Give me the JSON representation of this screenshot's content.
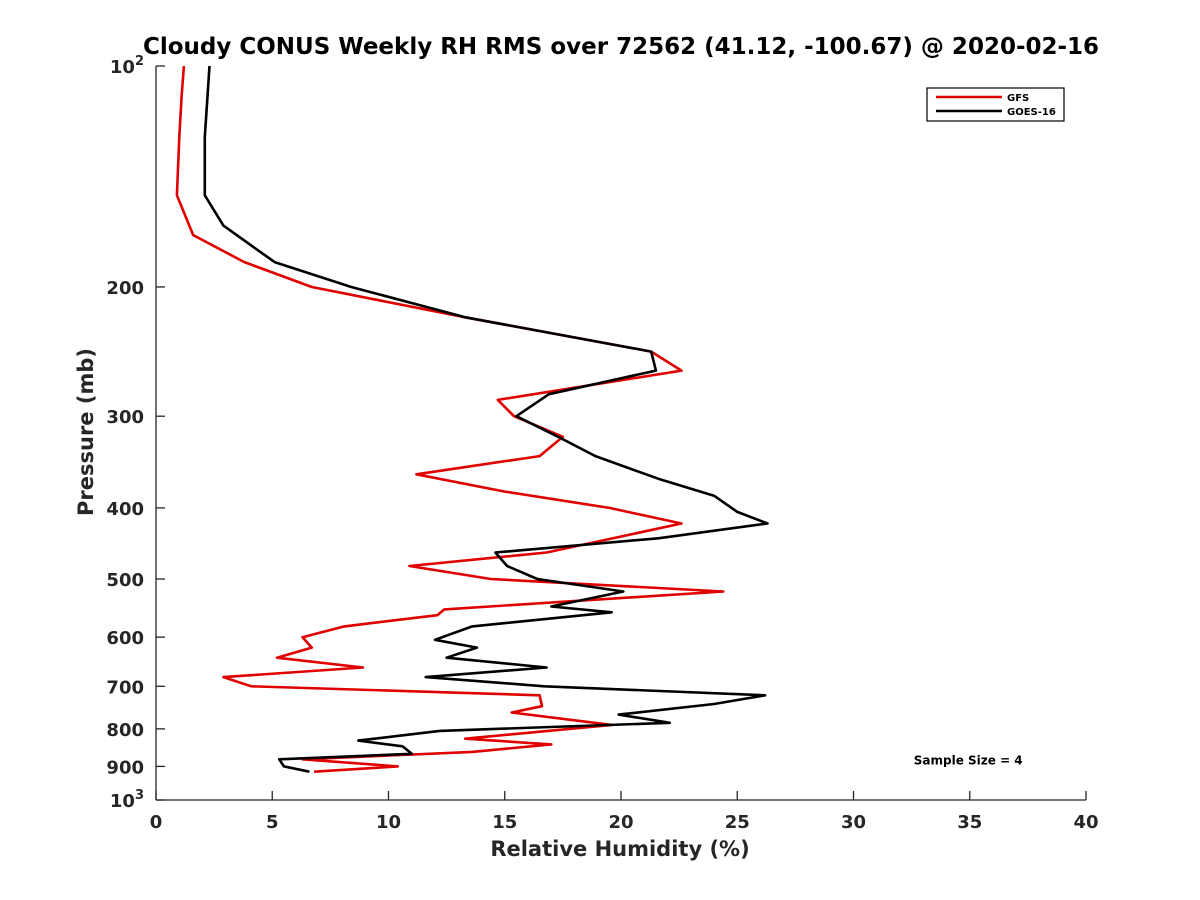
{
  "chart_data": {
    "type": "line",
    "title": "Cloudy CONUS Weekly RH RMS over 72562 (41.12, -100.67) @ 2020-02-16",
    "xlabel": "Relative Humidity (%)",
    "ylabel": "Pressure (mb)",
    "xlim": [
      0,
      40
    ],
    "ylim": [
      100,
      1000
    ],
    "y_scale": "log",
    "y_reversed": true,
    "grid": false,
    "legend_position": "top-right",
    "x_ticks": [
      {
        "value": 0,
        "label": "0"
      },
      {
        "value": 5,
        "label": "5"
      },
      {
        "value": 10,
        "label": "10"
      },
      {
        "value": 15,
        "label": "15"
      },
      {
        "value": 20,
        "label": "20"
      },
      {
        "value": 25,
        "label": "25"
      },
      {
        "value": 30,
        "label": "30"
      },
      {
        "value": 35,
        "label": "35"
      },
      {
        "value": 40,
        "label": "40"
      }
    ],
    "y_ticks": [
      {
        "value": 100,
        "base": "10",
        "exp": "2"
      },
      {
        "value": 200,
        "base": "200",
        "exp": ""
      },
      {
        "value": 300,
        "base": "300",
        "exp": ""
      },
      {
        "value": 400,
        "base": "400",
        "exp": ""
      },
      {
        "value": 500,
        "base": "500",
        "exp": ""
      },
      {
        "value": 600,
        "base": "600",
        "exp": ""
      },
      {
        "value": 700,
        "base": "700",
        "exp": ""
      },
      {
        "value": 800,
        "base": "800",
        "exp": ""
      },
      {
        "value": 900,
        "base": "900",
        "exp": ""
      },
      {
        "value": 1000,
        "base": "10",
        "exp": "3"
      }
    ],
    "series": [
      {
        "name": "GFS",
        "color": "#e00000",
        "points": [
          {
            "x": 1.2,
            "y": 100
          },
          {
            "x": 1.1,
            "y": 110
          },
          {
            "x": 1.0,
            "y": 125
          },
          {
            "x": 0.9,
            "y": 150
          },
          {
            "x": 1.6,
            "y": 170
          },
          {
            "x": 3.8,
            "y": 185
          },
          {
            "x": 6.7,
            "y": 200
          },
          {
            "x": 13.3,
            "y": 220
          },
          {
            "x": 21.3,
            "y": 245
          },
          {
            "x": 22.6,
            "y": 260
          },
          {
            "x": 14.7,
            "y": 285
          },
          {
            "x": 15.4,
            "y": 300
          },
          {
            "x": 17.5,
            "y": 320
          },
          {
            "x": 16.5,
            "y": 340
          },
          {
            "x": 11.2,
            "y": 360
          },
          {
            "x": 15.0,
            "y": 380
          },
          {
            "x": 19.5,
            "y": 400
          },
          {
            "x": 22.6,
            "y": 420
          },
          {
            "x": 16.8,
            "y": 460
          },
          {
            "x": 10.9,
            "y": 480
          },
          {
            "x": 14.4,
            "y": 500
          },
          {
            "x": 24.4,
            "y": 520
          },
          {
            "x": 12.4,
            "y": 550
          },
          {
            "x": 12.1,
            "y": 560
          },
          {
            "x": 8.1,
            "y": 580
          },
          {
            "x": 6.3,
            "y": 600
          },
          {
            "x": 6.7,
            "y": 620
          },
          {
            "x": 5.2,
            "y": 640
          },
          {
            "x": 8.9,
            "y": 660
          },
          {
            "x": 2.9,
            "y": 680
          },
          {
            "x": 4.1,
            "y": 700
          },
          {
            "x": 16.5,
            "y": 720
          },
          {
            "x": 16.6,
            "y": 745
          },
          {
            "x": 15.3,
            "y": 760
          },
          {
            "x": 19.6,
            "y": 790
          },
          {
            "x": 13.3,
            "y": 825
          },
          {
            "x": 17.0,
            "y": 840
          },
          {
            "x": 13.6,
            "y": 860
          },
          {
            "x": 6.3,
            "y": 880
          },
          {
            "x": 10.4,
            "y": 900
          },
          {
            "x": 6.8,
            "y": 915
          }
        ]
      },
      {
        "name": "GOES-16",
        "color": "#000000",
        "points": [
          {
            "x": 2.3,
            "y": 100
          },
          {
            "x": 2.1,
            "y": 125
          },
          {
            "x": 2.1,
            "y": 150
          },
          {
            "x": 2.9,
            "y": 165
          },
          {
            "x": 5.1,
            "y": 185
          },
          {
            "x": 8.4,
            "y": 200
          },
          {
            "x": 13.3,
            "y": 220
          },
          {
            "x": 21.3,
            "y": 245
          },
          {
            "x": 21.5,
            "y": 260
          },
          {
            "x": 16.9,
            "y": 280
          },
          {
            "x": 15.5,
            "y": 300
          },
          {
            "x": 17.3,
            "y": 320
          },
          {
            "x": 18.9,
            "y": 340
          },
          {
            "x": 21.6,
            "y": 365
          },
          {
            "x": 24.0,
            "y": 385
          },
          {
            "x": 25.0,
            "y": 405
          },
          {
            "x": 26.3,
            "y": 420
          },
          {
            "x": 21.6,
            "y": 440
          },
          {
            "x": 14.6,
            "y": 460
          },
          {
            "x": 15.1,
            "y": 480
          },
          {
            "x": 16.4,
            "y": 500
          },
          {
            "x": 20.1,
            "y": 520
          },
          {
            "x": 17.0,
            "y": 545
          },
          {
            "x": 19.6,
            "y": 555
          },
          {
            "x": 13.6,
            "y": 580
          },
          {
            "x": 12.0,
            "y": 605
          },
          {
            "x": 13.8,
            "y": 620
          },
          {
            "x": 12.5,
            "y": 640
          },
          {
            "x": 16.8,
            "y": 660
          },
          {
            "x": 11.6,
            "y": 680
          },
          {
            "x": 16.7,
            "y": 700
          },
          {
            "x": 26.2,
            "y": 720
          },
          {
            "x": 24.0,
            "y": 740
          },
          {
            "x": 19.9,
            "y": 765
          },
          {
            "x": 22.1,
            "y": 785
          },
          {
            "x": 12.2,
            "y": 805
          },
          {
            "x": 8.7,
            "y": 830
          },
          {
            "x": 10.6,
            "y": 845
          },
          {
            "x": 11.0,
            "y": 865
          },
          {
            "x": 5.3,
            "y": 880
          },
          {
            "x": 5.5,
            "y": 900
          },
          {
            "x": 6.6,
            "y": 915
          }
        ]
      }
    ],
    "annotations": [
      {
        "text": "Sample Size = 4",
        "x": 35,
        "y": 880
      }
    ]
  }
}
